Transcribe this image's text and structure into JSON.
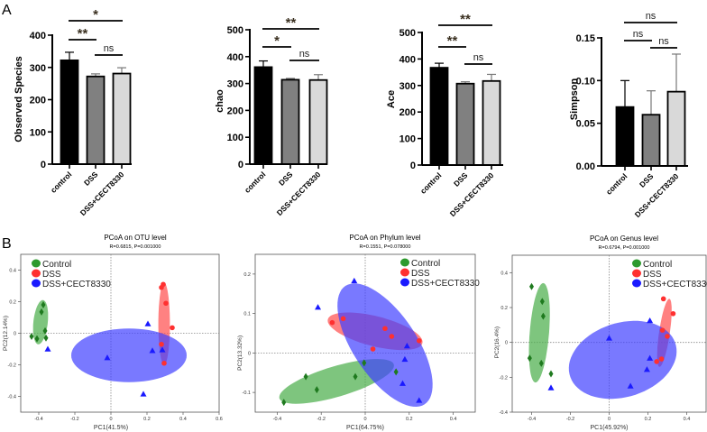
{
  "panel_labels": {
    "a": "A",
    "b": "B"
  },
  "colors": {
    "control_bar": "#000000",
    "dss_bar": "#808080",
    "cect_bar": "#d9d9d9",
    "control": "#2e9a2e",
    "dss": "#ff3030",
    "cect": "#1a1aff",
    "control_ellipse": "#4caf4c",
    "dss_ellipse": "#ff5050",
    "cect_ellipse": "#4040ff"
  },
  "chart_data": [
    {
      "type": "bar",
      "ylabel": "Observed Species",
      "categories": [
        "control",
        "DSS",
        "DSS+CECT8330"
      ],
      "values": [
        322,
        272,
        281
      ],
      "errors": [
        25,
        8,
        18
      ],
      "ylim": [
        0,
        400
      ],
      "yticks": [
        0,
        100,
        200,
        300,
        400
      ],
      "significance": [
        {
          "from": 0,
          "to": 2,
          "label": "*"
        },
        {
          "from": 0,
          "to": 1,
          "label": "**"
        },
        {
          "from": 1,
          "to": 2,
          "label": "ns"
        }
      ]
    },
    {
      "type": "bar",
      "ylabel": "chao",
      "categories": [
        "control",
        "DSS",
        "DSS+CECT8330"
      ],
      "values": [
        361,
        314,
        313
      ],
      "errors": [
        23,
        5,
        20
      ],
      "ylim": [
        0,
        500
      ],
      "yticks": [
        0,
        100,
        200,
        300,
        400,
        500
      ],
      "significance": [
        {
          "from": 0,
          "to": 2,
          "label": "**"
        },
        {
          "from": 0,
          "to": 1,
          "label": "*"
        },
        {
          "from": 1,
          "to": 2,
          "label": "ns"
        }
      ]
    },
    {
      "type": "bar",
      "ylabel": "Ace",
      "categories": [
        "control",
        "DSS",
        "DSS+CECT8330"
      ],
      "values": [
        367,
        307,
        317
      ],
      "errors": [
        17,
        7,
        25
      ],
      "ylim": [
        0,
        500
      ],
      "yticks": [
        0,
        100,
        200,
        300,
        400,
        500
      ],
      "significance": [
        {
          "from": 0,
          "to": 2,
          "label": "**"
        },
        {
          "from": 0,
          "to": 1,
          "label": "**"
        },
        {
          "from": 1,
          "to": 2,
          "label": "ns"
        }
      ]
    },
    {
      "type": "bar",
      "ylabel": "Simpson",
      "categories": [
        "control",
        "DSS",
        "DSS+CECT8330"
      ],
      "values": [
        0.069,
        0.06,
        0.087
      ],
      "errors": [
        0.031,
        0.028,
        0.044
      ],
      "ylim": [
        0,
        0.15
      ],
      "yticks": [
        "0.00",
        "0.05",
        "0.10",
        "0.15"
      ],
      "significance": [
        {
          "from": 0,
          "to": 2,
          "label": "ns"
        },
        {
          "from": 0,
          "to": 1,
          "label": "ns"
        },
        {
          "from": 1,
          "to": 2,
          "label": "ns"
        }
      ]
    },
    {
      "type": "scatter",
      "title": "PCoA on OTU level",
      "subtitle": "R=0.6815, P=0.001000",
      "xlabel": "PC1(41.5%)",
      "ylabel": "PC2(12.14%)",
      "xlim": [
        -0.5,
        0.6
      ],
      "ylim": [
        -0.5,
        0.5
      ],
      "xticks": [
        "-0.4",
        "-0.2",
        "0",
        "0.2",
        "0.4",
        "0.6"
      ],
      "yticks": [
        "-0.4",
        "-0.2",
        "0",
        "0.2",
        "0.4"
      ],
      "legend": "top-left",
      "series": [
        {
          "name": "Control",
          "marker": "diamond",
          "points": [
            [
              -0.44,
              -0.02
            ],
            [
              -0.41,
              -0.035
            ],
            [
              -0.385,
              0.135
            ],
            [
              -0.375,
              0.18
            ],
            [
              -0.365,
              0.015
            ],
            [
              -0.36,
              -0.03
            ]
          ],
          "ellipse": {
            "center": [
              -0.39,
              0.07
            ],
            "axis_a": [
              0.012,
              0.14
            ],
            "axis_b": [
              0.04,
              0
            ]
          }
        },
        {
          "name": "DSS",
          "marker": "circle",
          "points": [
            [
              0.28,
              0.29
            ],
            [
              0.29,
              0.31
            ],
            [
              0.305,
              0.19
            ],
            [
              0.34,
              0.035
            ],
            [
              0.28,
              -0.07
            ],
            [
              0.295,
              -0.19
            ]
          ],
          "ellipse": {
            "center": [
              0.295,
              0.06
            ],
            "axis_a": [
              0,
              0.26
            ],
            "axis_b": [
              0.032,
              0
            ]
          }
        },
        {
          "name": "DSS+CECT8330",
          "marker": "triangle",
          "points": [
            [
              -0.35,
              -0.1
            ],
            [
              -0.02,
              -0.155
            ],
            [
              0.205,
              0.06
            ],
            [
              0.23,
              -0.11
            ],
            [
              0.285,
              -0.105
            ],
            [
              0.18,
              -0.385
            ]
          ],
          "ellipse": {
            "center": [
              0.1,
              -0.14
            ],
            "axis_a": [
              0.32,
              0
            ],
            "axis_b": [
              0,
              0.17
            ]
          }
        }
      ]
    },
    {
      "type": "scatter",
      "title": "PCoA on Phylum level",
      "subtitle": "R=0.1551, P=0.078000",
      "xlabel": "PC1(64.75%)",
      "ylabel": "PC2(13.32%)",
      "xlim": [
        -0.5,
        0.5
      ],
      "ylim": [
        -0.15,
        0.25
      ],
      "xticks": [
        "-0.4",
        "-0.2",
        "0",
        "0.2",
        "0.4"
      ],
      "yticks": [
        "-0.1",
        "0",
        "0.1",
        "0.2"
      ],
      "legend": "top-right",
      "series": [
        {
          "name": "Control",
          "marker": "diamond",
          "points": [
            [
              -0.37,
              -0.125
            ],
            [
              -0.27,
              -0.06
            ],
            [
              -0.22,
              -0.093
            ],
            [
              -0.045,
              -0.06
            ],
            [
              -0.005,
              -0.025
            ],
            [
              0.14,
              -0.048
            ]
          ],
          "ellipse": {
            "center": [
              -0.13,
              -0.072
            ],
            "axis_a": [
              0.26,
              0.043
            ],
            "axis_b": [
              0.02,
              -0.037
            ]
          }
        },
        {
          "name": "DSS",
          "marker": "circle",
          "points": [
            [
              -0.15,
              0.077
            ],
            [
              -0.1,
              0.087
            ],
            [
              0.09,
              0.062
            ],
            [
              0.12,
              0.042
            ],
            [
              0.035,
              0.01
            ],
            [
              0.245,
              0.031
            ]
          ],
          "ellipse": {
            "center": [
              0.045,
              0.055
            ],
            "axis_a": [
              0.215,
              -0.03
            ],
            "axis_b": [
              -0.016,
              -0.037
            ]
          }
        },
        {
          "name": "DSS+CECT8330",
          "marker": "triangle",
          "points": [
            [
              -0.05,
              0.183
            ],
            [
              -0.215,
              0.116
            ],
            [
              0.19,
              0.018
            ],
            [
              0.18,
              -0.016
            ],
            [
              0.17,
              -0.077
            ],
            [
              0.245,
              -0.12
            ]
          ],
          "ellipse": {
            "center": [
              0.09,
              0.02
            ],
            "axis_a": [
              0.18,
              -0.15
            ],
            "axis_b": [
              0.12,
              0.044
            ]
          }
        }
      ]
    },
    {
      "type": "scatter",
      "title": "PCoA on Genus level",
      "subtitle": "R=0.6794, P=0.001000",
      "xlabel": "PC1(45.92%)",
      "ylabel": "PC2(16.4%)",
      "xlim": [
        -0.5,
        0.5
      ],
      "ylim": [
        -0.4,
        0.5
      ],
      "xticks": [
        "-0.4",
        "-0.2",
        "0",
        "0.2",
        "0.4"
      ],
      "yticks": [
        "-0.4",
        "-0.2",
        "0",
        "0.2",
        "0.4"
      ],
      "legend": "top-right",
      "series": [
        {
          "name": "Control",
          "marker": "diamond",
          "points": [
            [
              -0.4,
              0.32
            ],
            [
              -0.345,
              0.235
            ],
            [
              -0.34,
              0.15
            ],
            [
              -0.41,
              -0.09
            ],
            [
              -0.35,
              -0.12
            ],
            [
              -0.3,
              -0.18
            ]
          ],
          "ellipse": {
            "center": [
              -0.36,
              0.055
            ],
            "axis_a": [
              0.02,
              0.285
            ],
            "axis_b": [
              0.05,
              0
            ]
          }
        },
        {
          "name": "DSS",
          "marker": "circle",
          "points": [
            [
              0.28,
              0.25
            ],
            [
              0.33,
              0.165
            ],
            [
              0.275,
              0.07
            ],
            [
              0.3,
              0.035
            ],
            [
              0.27,
              -0.095
            ],
            [
              0.245,
              -0.11
            ]
          ],
          "ellipse": {
            "center": [
              0.285,
              0.055
            ],
            "axis_a": [
              0.025,
              0.195
            ],
            "axis_b": [
              0.028,
              0
            ]
          }
        },
        {
          "name": "DSS+CECT8330",
          "marker": "triangle",
          "points": [
            [
              0,
              0.025
            ],
            [
              0.21,
              0.125
            ],
            [
              0.21,
              -0.09
            ],
            [
              0.195,
              -0.155
            ],
            [
              0.11,
              -0.25
            ],
            [
              -0.3,
              -0.26
            ]
          ],
          "ellipse": {
            "center": [
              0.07,
              -0.1
            ],
            "axis_a": [
              0.27,
              0.1
            ],
            "axis_b": [
              -0.066,
              0.2
            ]
          }
        }
      ]
    }
  ]
}
